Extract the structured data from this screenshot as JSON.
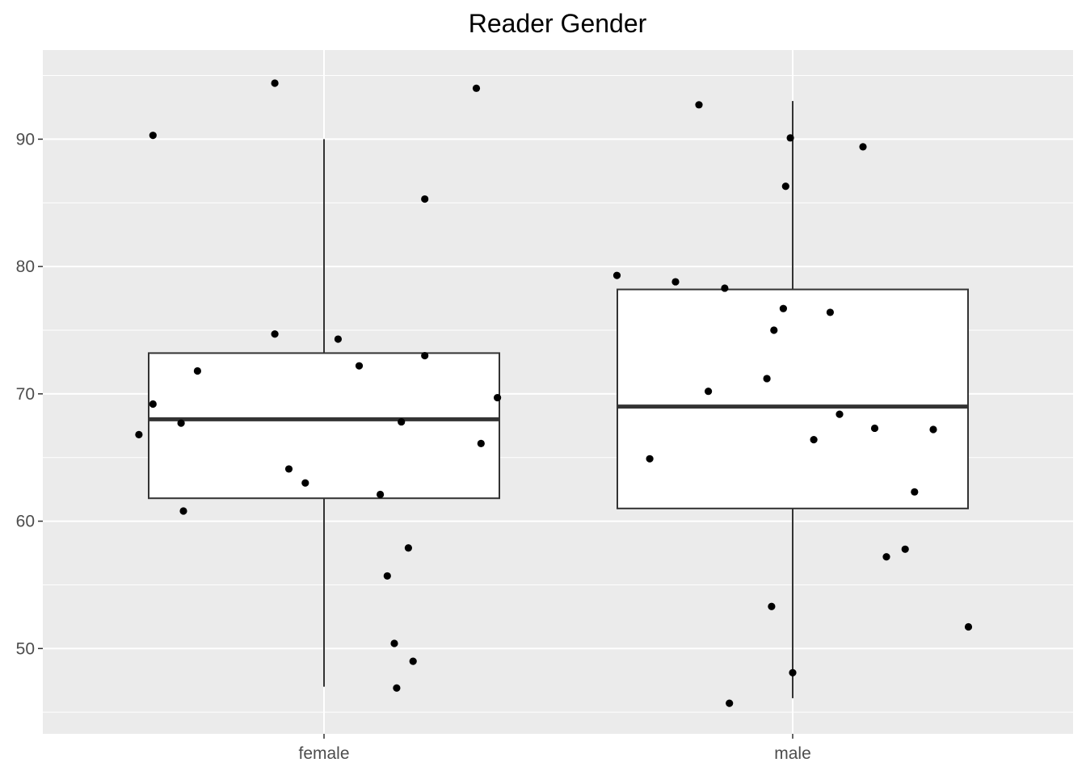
{
  "chart_data": {
    "type": "box",
    "title": "Reader Gender",
    "xlabel": "",
    "ylabel": "",
    "categories": [
      "female",
      "male"
    ],
    "y_ticks": [
      50,
      60,
      70,
      80,
      90
    ],
    "ylim": [
      43.3,
      97.0
    ],
    "grid": true,
    "boxes": [
      {
        "category": "female",
        "whisker_low": 47.0,
        "q1": 61.8,
        "median": 68.0,
        "q3": 73.2,
        "whisker_high": 90.0
      },
      {
        "category": "male",
        "whisker_low": 46.1,
        "q1": 61.0,
        "median": 69.0,
        "q3": 78.2,
        "whisker_high": 93.0
      }
    ],
    "points": [
      {
        "category": "female",
        "jitter": -0.79,
        "y": 66.8
      },
      {
        "category": "female",
        "jitter": -0.73,
        "y": 90.3
      },
      {
        "category": "female",
        "jitter": -0.73,
        "y": 69.2
      },
      {
        "category": "female",
        "jitter": -0.61,
        "y": 67.7
      },
      {
        "category": "female",
        "jitter": -0.6,
        "y": 60.8
      },
      {
        "category": "female",
        "jitter": -0.54,
        "y": 71.8
      },
      {
        "category": "female",
        "jitter": -0.21,
        "y": 94.4
      },
      {
        "category": "female",
        "jitter": -0.21,
        "y": 74.7
      },
      {
        "category": "female",
        "jitter": -0.15,
        "y": 64.1
      },
      {
        "category": "female",
        "jitter": -0.08,
        "y": 63.0
      },
      {
        "category": "female",
        "jitter": 0.06,
        "y": 74.3
      },
      {
        "category": "female",
        "jitter": 0.15,
        "y": 72.2
      },
      {
        "category": "female",
        "jitter": 0.24,
        "y": 62.1
      },
      {
        "category": "female",
        "jitter": 0.27,
        "y": 55.7
      },
      {
        "category": "female",
        "jitter": 0.3,
        "y": 50.4
      },
      {
        "category": "female",
        "jitter": 0.31,
        "y": 46.9
      },
      {
        "category": "female",
        "jitter": 0.33,
        "y": 67.8
      },
      {
        "category": "female",
        "jitter": 0.36,
        "y": 57.9
      },
      {
        "category": "female",
        "jitter": 0.38,
        "y": 49.0
      },
      {
        "category": "female",
        "jitter": 0.43,
        "y": 85.3
      },
      {
        "category": "female",
        "jitter": 0.43,
        "y": 73.0
      },
      {
        "category": "female",
        "jitter": 0.65,
        "y": 94.0
      },
      {
        "category": "female",
        "jitter": 0.67,
        "y": 66.1
      },
      {
        "category": "female",
        "jitter": 0.74,
        "y": 69.7
      },
      {
        "category": "male",
        "jitter": -0.75,
        "y": 79.3
      },
      {
        "category": "male",
        "jitter": -0.61,
        "y": 64.9
      },
      {
        "category": "male",
        "jitter": -0.5,
        "y": 78.8
      },
      {
        "category": "male",
        "jitter": -0.4,
        "y": 92.7
      },
      {
        "category": "male",
        "jitter": -0.36,
        "y": 70.2
      },
      {
        "category": "male",
        "jitter": -0.29,
        "y": 78.3
      },
      {
        "category": "male",
        "jitter": -0.27,
        "y": 45.7
      },
      {
        "category": "male",
        "jitter": -0.11,
        "y": 71.2
      },
      {
        "category": "male",
        "jitter": -0.09,
        "y": 53.3
      },
      {
        "category": "male",
        "jitter": -0.08,
        "y": 75.0
      },
      {
        "category": "male",
        "jitter": -0.04,
        "y": 76.7
      },
      {
        "category": "male",
        "jitter": -0.03,
        "y": 86.3
      },
      {
        "category": "male",
        "jitter": -0.01,
        "y": 90.1
      },
      {
        "category": "male",
        "jitter": 0.0,
        "y": 48.1
      },
      {
        "category": "male",
        "jitter": 0.09,
        "y": 66.4
      },
      {
        "category": "male",
        "jitter": 0.16,
        "y": 76.4
      },
      {
        "category": "male",
        "jitter": 0.2,
        "y": 68.4
      },
      {
        "category": "male",
        "jitter": 0.3,
        "y": 89.4
      },
      {
        "category": "male",
        "jitter": 0.35,
        "y": 67.3
      },
      {
        "category": "male",
        "jitter": 0.4,
        "y": 57.2
      },
      {
        "category": "male",
        "jitter": 0.48,
        "y": 57.8
      },
      {
        "category": "male",
        "jitter": 0.52,
        "y": 62.3
      },
      {
        "category": "male",
        "jitter": 0.6,
        "y": 67.2
      },
      {
        "category": "male",
        "jitter": 0.75,
        "y": 51.7
      }
    ],
    "colors": {
      "panel_background": "#ebebeb",
      "grid": "#ffffff",
      "box_fill": "#ffffff",
      "box_line": "#333333",
      "point": "#000000",
      "tick_label": "#4d4d4d"
    }
  }
}
